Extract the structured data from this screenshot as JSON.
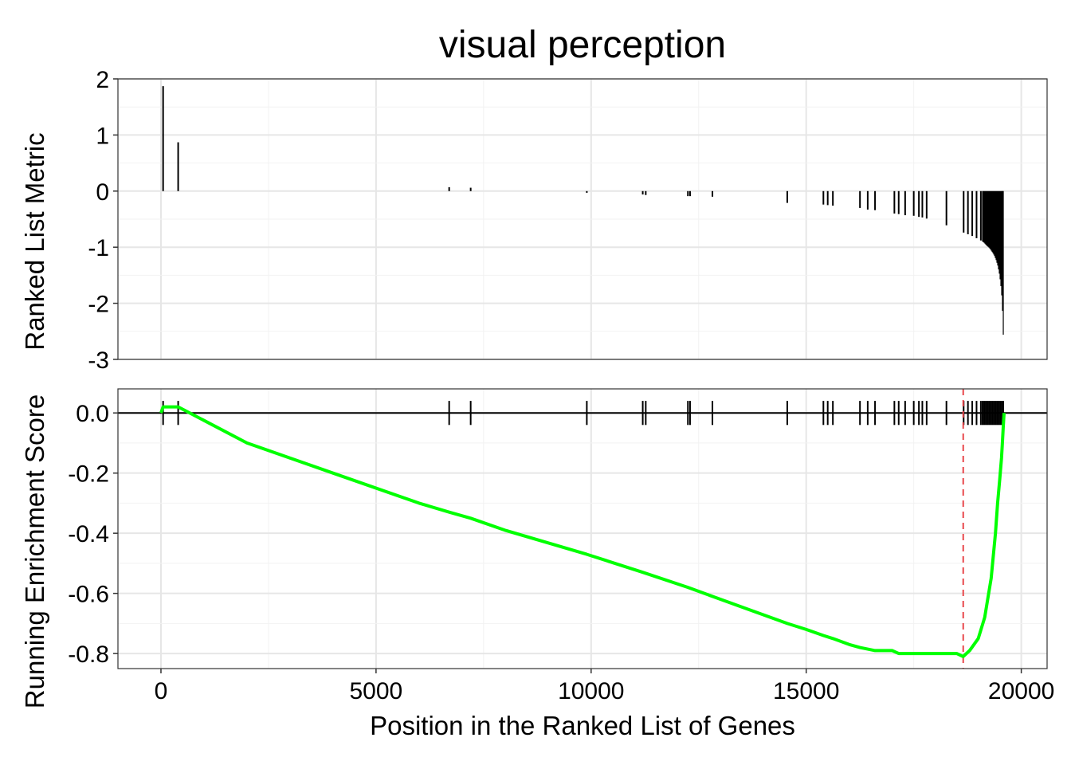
{
  "chart_data": [
    {
      "type": "bar",
      "panel": "ranked-list-metric",
      "title": "visual perception",
      "ylabel": "Ranked List Metric",
      "ylim": [
        -3,
        2
      ],
      "yticks": [
        "2",
        "1",
        "0",
        "-1",
        "-2",
        "-3"
      ],
      "grid": true,
      "positions": [
        50,
        400,
        6700,
        7200,
        9900,
        11200,
        11270,
        12250,
        12300,
        12820,
        14560,
        15400,
        15500,
        15620,
        16250,
        16430,
        16600,
        17050,
        17150,
        17300,
        17500,
        17620,
        17700,
        17800,
        18260,
        18660,
        18760,
        18860,
        18960,
        19060
      ],
      "values": [
        1.87,
        0.87,
        0.07,
        0.06,
        -0.03,
        -0.06,
        -0.07,
        -0.09,
        -0.09,
        -0.1,
        -0.21,
        -0.24,
        -0.25,
        -0.26,
        -0.3,
        -0.33,
        -0.34,
        -0.4,
        -0.41,
        -0.43,
        -0.44,
        -0.46,
        -0.47,
        -0.49,
        -0.61,
        -0.74,
        -0.77,
        -0.8,
        -0.84,
        -0.88
      ],
      "dense_tail": {
        "start": 19100,
        "end": 19590,
        "values": [
          -0.9,
          -0.92,
          -0.95,
          -0.98,
          -1.0,
          -1.03,
          -1.07,
          -1.11,
          -1.16,
          -1.23,
          -1.32,
          -1.45,
          -1.64,
          -1.95,
          -2.75
        ]
      }
    },
    {
      "type": "line",
      "panel": "running-enrichment-score",
      "xlabel": "Position in the Ranked List of Genes",
      "ylabel": "Running Enrichment Score",
      "xlim": [
        -1000,
        20600
      ],
      "ylim": [
        -0.85,
        0.08
      ],
      "xticks": [
        "0",
        "5000",
        "10000",
        "15000",
        "20000"
      ],
      "yticks": [
        "0.0",
        "-0.2",
        "-0.4",
        "-0.6",
        "-0.8"
      ],
      "grid": true,
      "line_color": "#00ff00",
      "zero_line": 0,
      "peak_marker": {
        "x": 18650,
        "color": "#e8474c",
        "style": "dashed"
      },
      "series": [
        {
          "x": [
            0,
            50,
            400,
            2000,
            4000,
            6000,
            6700,
            7200,
            8000,
            9900,
            11200,
            12250,
            12820,
            14560,
            15000,
            15400,
            15620,
            16000,
            16250,
            16600,
            17000,
            17150,
            17300,
            17500,
            17620,
            17800,
            18000,
            18260,
            18500,
            18650,
            18800,
            19000,
            19150,
            19300,
            19400,
            19450,
            19500,
            19540,
            19560,
            19580,
            19600
          ],
          "values": [
            0.0,
            0.02,
            0.02,
            -0.1,
            -0.2,
            -0.3,
            -0.33,
            -0.35,
            -0.39,
            -0.47,
            -0.53,
            -0.58,
            -0.61,
            -0.7,
            -0.72,
            -0.74,
            -0.75,
            -0.77,
            -0.78,
            -0.79,
            -0.79,
            -0.8,
            -0.8,
            -0.8,
            -0.8,
            -0.8,
            -0.8,
            -0.8,
            -0.8,
            -0.81,
            -0.79,
            -0.75,
            -0.68,
            -0.55,
            -0.4,
            -0.3,
            -0.22,
            -0.15,
            -0.1,
            -0.05,
            0.0
          ]
        }
      ],
      "gene_hits": [
        50,
        400,
        6700,
        7200,
        9900,
        11200,
        11270,
        12250,
        12300,
        12820,
        14560,
        15400,
        15500,
        15620,
        16250,
        16430,
        16600,
        17050,
        17150,
        17300,
        17500,
        17620,
        17700,
        17800,
        18260,
        18660,
        18760,
        18860,
        18960,
        19060
      ],
      "gene_hits_dense": {
        "start": 19100,
        "end": 19590
      }
    }
  ]
}
